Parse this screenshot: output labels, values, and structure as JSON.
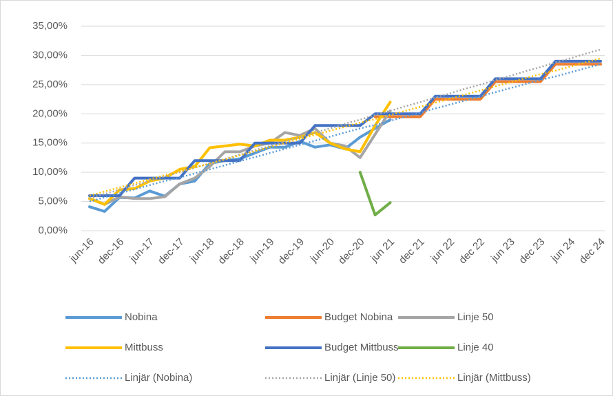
{
  "chart_data": {
    "type": "line",
    "categories": [
      "jun-16",
      null,
      "dec-16",
      null,
      "jun-17",
      null,
      "dec-17",
      null,
      "jun-18",
      null,
      "dec-18",
      null,
      "jun-19",
      null,
      "dec-19",
      null,
      "jun-20",
      null,
      "dec-20",
      null,
      "jun 21",
      null,
      "dec 21",
      null,
      "jun 22",
      null,
      "dec 22",
      null,
      "jun 23",
      null,
      "dec 23",
      null,
      "jun 24",
      null,
      "dec 24"
    ],
    "ylim": [
      0,
      35
    ],
    "yticks": [
      {
        "value": 0,
        "label": "0,00%"
      },
      {
        "value": 5,
        "label": "5,00%"
      },
      {
        "value": 10,
        "label": "10,00%"
      },
      {
        "value": 15,
        "label": "15,00%"
      },
      {
        "value": 20,
        "label": "20,00%"
      },
      {
        "value": 25,
        "label": "25,00%"
      },
      {
        "value": 30,
        "label": "30,00%"
      },
      {
        "value": 35,
        "label": "35,00%"
      }
    ],
    "grid": true,
    "legend": "bottom",
    "series": [
      {
        "name": "Nobina",
        "color": "#5b9bd5",
        "style": "solid",
        "values": [
          4.1,
          3.3,
          5.7,
          5.6,
          6.8,
          5.9,
          8.0,
          8.5,
          11.5,
          12.0,
          12.3,
          13.3,
          14.3,
          14.3,
          15.3,
          14.3,
          14.7,
          14.0,
          16.0,
          17.5,
          19.0,
          null,
          null,
          null,
          null,
          null,
          null,
          null,
          null,
          null,
          null,
          null,
          null,
          null,
          null
        ]
      },
      {
        "name": "Budget Nobina",
        "color": "#ed7d31",
        "style": "solid",
        "values": [
          null,
          null,
          null,
          null,
          null,
          null,
          null,
          null,
          null,
          null,
          null,
          null,
          null,
          null,
          null,
          null,
          null,
          null,
          null,
          19.5,
          19.5,
          19.5,
          19.5,
          22.5,
          22.5,
          22.5,
          22.5,
          25.5,
          25.5,
          25.5,
          25.5,
          28.5,
          28.5,
          28.5,
          28.5
        ]
      },
      {
        "name": "Linje 50",
        "color": "#a5a5a5",
        "style": "solid",
        "values": [
          5.5,
          4.5,
          5.8,
          5.5,
          5.5,
          5.8,
          8.0,
          9.0,
          11.0,
          13.5,
          13.5,
          14.5,
          15.0,
          16.8,
          16.3,
          17.5,
          15.0,
          14.5,
          12.5,
          16.5,
          20.5,
          null,
          null,
          null,
          null,
          null,
          null,
          null,
          null,
          null,
          null,
          null,
          null,
          null,
          null
        ]
      },
      {
        "name": "Mittbuss",
        "color": "#ffc000",
        "style": "solid",
        "values": [
          5.5,
          4.5,
          7.0,
          7.2,
          8.5,
          9.0,
          10.5,
          11.0,
          14.2,
          14.5,
          14.8,
          14.5,
          15.5,
          15.5,
          16.0,
          16.8,
          15.0,
          14.0,
          13.5,
          18.0,
          22.0,
          null,
          null,
          null,
          null,
          null,
          null,
          null,
          null,
          null,
          null,
          null,
          null,
          null,
          null
        ]
      },
      {
        "name": "Budget Mittbuss",
        "color": "#4472c4",
        "style": "solid",
        "values": [
          6,
          6,
          6,
          9,
          9,
          9,
          9,
          12,
          12,
          12,
          12,
          15,
          15,
          15,
          15,
          18,
          18,
          18,
          18,
          20,
          20,
          20,
          20,
          23,
          23,
          23,
          23,
          26,
          26,
          26,
          26,
          29,
          29,
          29,
          29
        ]
      },
      {
        "name": "Linje 40",
        "color": "#70ad47",
        "style": "solid",
        "values": [
          null,
          null,
          null,
          null,
          null,
          null,
          null,
          null,
          null,
          null,
          null,
          null,
          null,
          null,
          null,
          null,
          null,
          null,
          10.0,
          2.7,
          4.8,
          null,
          null,
          null,
          null,
          null,
          null,
          null,
          null,
          null,
          null,
          null,
          null,
          null,
          null
        ]
      },
      {
        "name": "Linjär (Nobina)",
        "color": "#5b9bd5",
        "style": "dotted",
        "values": [
          5.0,
          5.7,
          6.4,
          7.1,
          7.8,
          8.5,
          9.1,
          9.8,
          10.5,
          11.2,
          11.9,
          12.6,
          13.3,
          14.0,
          14.7,
          15.4,
          16.1,
          16.8,
          17.5,
          18.1,
          18.8,
          19.5,
          20.2,
          20.9,
          21.6,
          22.3,
          23.0,
          23.7,
          24.4,
          25.1,
          25.8,
          26.4,
          27.1,
          27.8,
          28.5
        ]
      },
      {
        "name": "Linjär (Linje 50)",
        "color": "#a5a5a5",
        "style": "dotted",
        "values": [
          5.5,
          6.3,
          7.0,
          7.8,
          8.5,
          9.3,
          10.0,
          10.8,
          11.5,
          12.3,
          13.0,
          13.8,
          14.5,
          15.3,
          16.0,
          16.8,
          17.5,
          18.3,
          19.0,
          19.8,
          20.5,
          21.3,
          22.0,
          22.8,
          23.5,
          24.3,
          25.0,
          25.8,
          26.5,
          27.3,
          28.0,
          28.8,
          29.5,
          30.3,
          31.0
        ]
      },
      {
        "name": "Linjär (Mittbuss)",
        "color": "#ffc000",
        "style": "dotted",
        "values": [
          6.0,
          6.7,
          7.4,
          8.1,
          8.8,
          9.5,
          10.1,
          10.8,
          11.5,
          12.2,
          12.9,
          13.6,
          14.3,
          15.0,
          15.7,
          16.4,
          17.1,
          17.8,
          18.5,
          19.1,
          19.8,
          20.5,
          21.2,
          21.9,
          22.6,
          23.3,
          24.0,
          24.7,
          25.4,
          26.1,
          26.8,
          27.4,
          28.1,
          28.8,
          29.5
        ]
      }
    ]
  }
}
